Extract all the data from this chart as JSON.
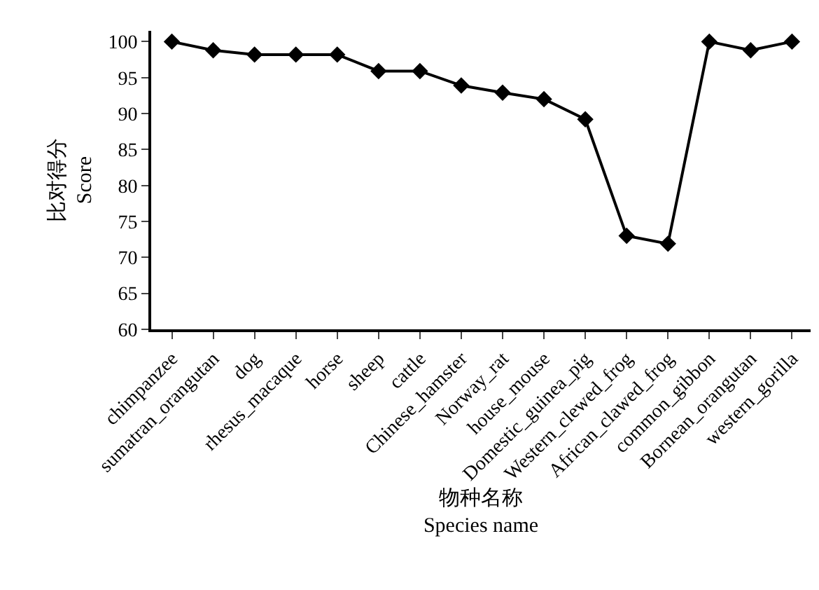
{
  "chart_data": {
    "type": "line",
    "xlabel": "物种名称\nSpecies name",
    "ylabel": "比对得分\nScore",
    "categories": [
      "chimpanzee",
      "sumatran_orangutan",
      "dog",
      "rhesus_macaque",
      "horse",
      "sheep",
      "cattle",
      "Chinese_hamster",
      "Norway_rat",
      "house_mouse",
      "Domestic_guinea_pig",
      "Western_clewed_frog",
      "African_clawed_frog",
      "common_gibbon",
      "Bornean_orangutan",
      "western_gorilla"
    ],
    "series": [
      {
        "color": "#000000",
        "values": [
          100,
          98.8,
          98.2,
          98.2,
          98.2,
          95.9,
          95.9,
          93.9,
          92.9,
          92.0,
          89.2,
          73.0,
          71.9,
          100,
          98.8,
          100
        ]
      }
    ],
    "ylim": [
      60,
      101.5
    ],
    "yticks": [
      60,
      65,
      70,
      75,
      80,
      85,
      90,
      95,
      100
    ],
    "marker": "diamond",
    "line_style": "solid"
  }
}
